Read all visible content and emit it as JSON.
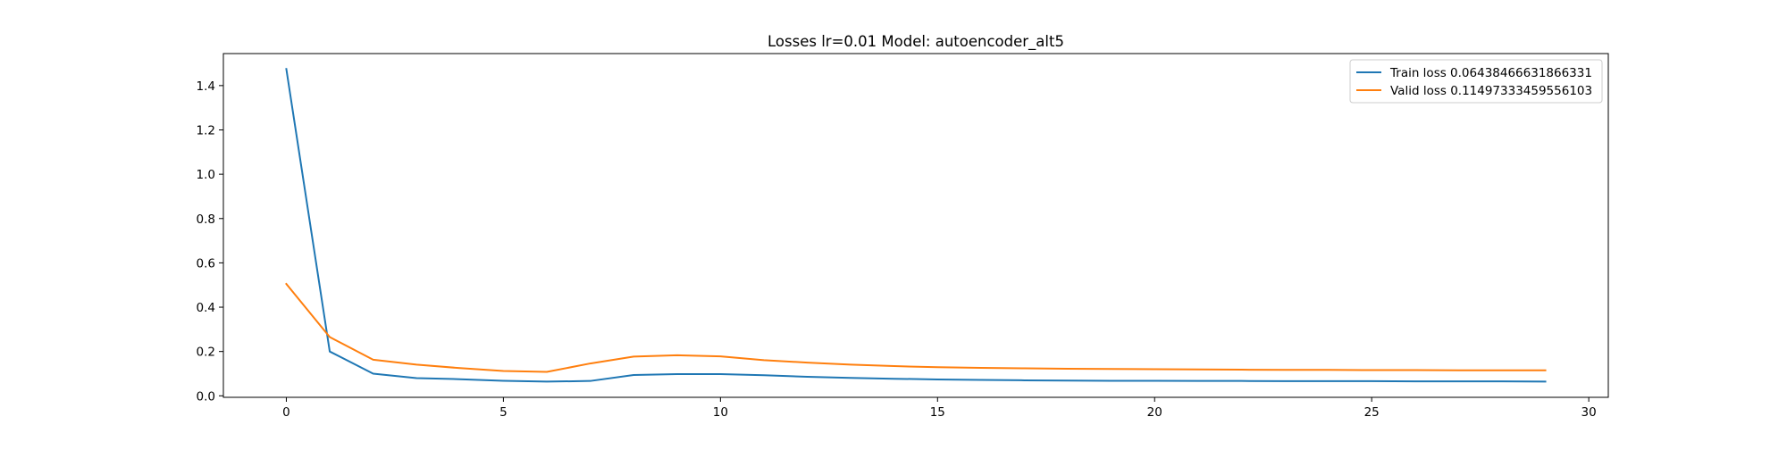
{
  "chart_data": {
    "type": "line",
    "title": "Losses lr=0.01 Model: autoencoder_alt5",
    "xlabel": "",
    "ylabel": "",
    "xlim": [
      -1.45,
      30.45
    ],
    "ylim": [
      -0.0068,
      1.5445
    ],
    "xticks": [
      0,
      5,
      10,
      15,
      20,
      25,
      30
    ],
    "yticks": [
      0.0,
      0.2,
      0.4,
      0.6,
      0.8,
      1.0,
      1.2,
      1.4
    ],
    "x": [
      0,
      1,
      2,
      3,
      4,
      5,
      6,
      7,
      8,
      9,
      10,
      11,
      12,
      13,
      14,
      15,
      16,
      17,
      18,
      19,
      20,
      21,
      22,
      23,
      24,
      25,
      26,
      27,
      28,
      29
    ],
    "series": [
      {
        "name": "Train loss 0.06438466631866331",
        "color": "#1f77b4",
        "values": [
          1.475,
          0.2,
          0.1,
          0.08,
          0.075,
          0.068,
          0.064,
          0.067,
          0.094,
          0.098,
          0.098,
          0.093,
          0.086,
          0.081,
          0.077,
          0.074,
          0.072,
          0.07,
          0.069,
          0.068,
          0.068,
          0.067,
          0.067,
          0.066,
          0.066,
          0.066,
          0.065,
          0.065,
          0.065,
          0.064
        ]
      },
      {
        "name": "Valid loss 0.11497333459556103",
        "color": "#ff7f0e",
        "values": [
          0.505,
          0.265,
          0.163,
          0.141,
          0.125,
          0.112,
          0.108,
          0.146,
          0.177,
          0.183,
          0.178,
          0.161,
          0.15,
          0.141,
          0.134,
          0.129,
          0.126,
          0.124,
          0.122,
          0.121,
          0.12,
          0.119,
          0.118,
          0.117,
          0.117,
          0.116,
          0.116,
          0.115,
          0.115,
          0.115
        ]
      }
    ],
    "legend_position": "top-right",
    "grid": false
  }
}
